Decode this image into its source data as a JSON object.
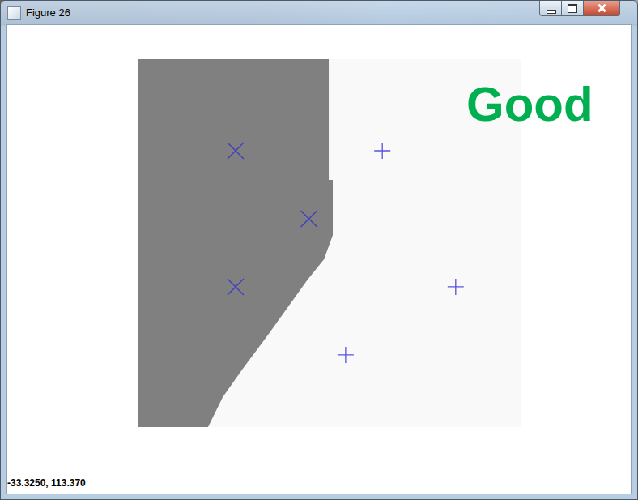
{
  "window": {
    "title": "Figure 26",
    "status": "-33.3250, 113.370"
  },
  "chart_data": {
    "type": "scatter",
    "xlim": [
      -2.67,
      7.77
    ],
    "ylim": [
      -2.12,
      8.69
    ],
    "tick_labels": false,
    "grid": false,
    "regions": [
      {
        "color": "#f9f9f9",
        "polygon": [
          [
            -2.67,
            8.69
          ],
          [
            7.77,
            8.69
          ],
          [
            7.77,
            -2.12
          ],
          [
            -2.67,
            -2.12
          ]
        ]
      },
      {
        "color": "#808080",
        "polygon": [
          [
            -2.67,
            8.69
          ],
          [
            2.54,
            8.69
          ],
          [
            2.54,
            5.14
          ],
          [
            2.65,
            5.14
          ],
          [
            2.65,
            3.52
          ],
          [
            2.41,
            2.81
          ],
          [
            1.96,
            2.21
          ],
          [
            1.41,
            1.38
          ],
          [
            0.86,
            0.55
          ],
          [
            0.2,
            -0.4
          ],
          [
            -0.35,
            -1.24
          ],
          [
            -0.75,
            -2.12
          ],
          [
            -2.67,
            -2.12
          ]
        ]
      }
    ],
    "series": [
      {
        "marker": "x",
        "color": "#2b2bd6",
        "x": [
          0,
          2,
          0
        ],
        "y": [
          6,
          4,
          2
        ]
      },
      {
        "marker": "plus",
        "color": "#2b2bd6",
        "x": [
          4,
          6,
          3
        ],
        "y": [
          6,
          2,
          0
        ]
      }
    ],
    "annotations": [
      {
        "text": "Good",
        "color": "#00b050"
      }
    ]
  }
}
